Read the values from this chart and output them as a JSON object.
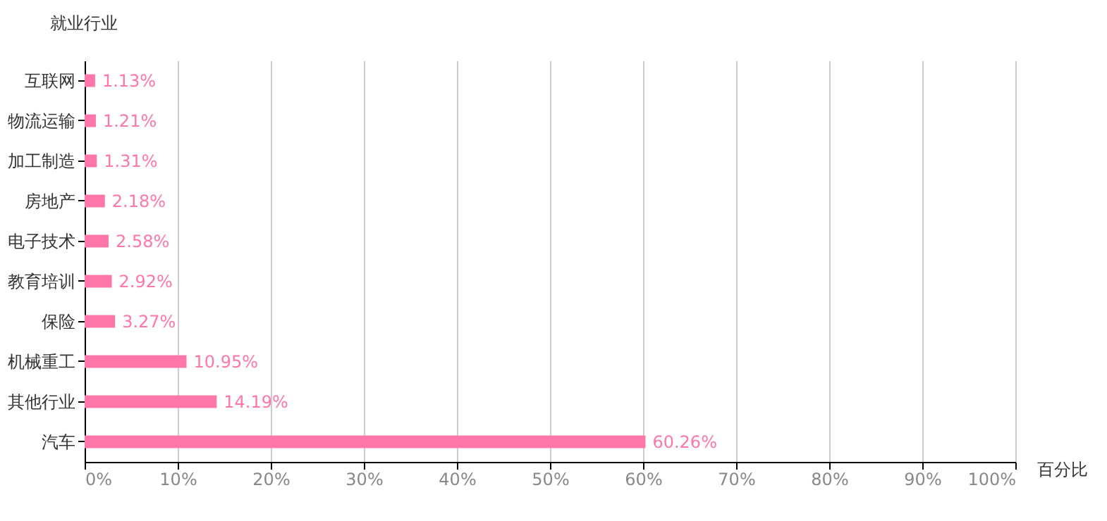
{
  "chart_data": {
    "type": "bar",
    "orientation": "horizontal",
    "xlabel": "百分比",
    "ylabel": "就业行业",
    "categories": [
      "互联网",
      "物流运输",
      "加工制造",
      "房地产",
      "电子技术",
      "教育培训",
      "保险",
      "机械重工",
      "其他行业",
      "汽车"
    ],
    "values": [
      1.13,
      1.21,
      1.31,
      2.18,
      2.58,
      2.92,
      3.27,
      10.95,
      14.19,
      60.26
    ],
    "value_labels": [
      "1.13%",
      "1.21%",
      "1.31%",
      "2.18%",
      "2.58%",
      "2.92%",
      "3.27%",
      "10.95%",
      "14.19%",
      "60.26%"
    ],
    "color": "#ff77a9",
    "xlim": [
      0,
      100
    ],
    "xticks": [
      {
        "value": 0,
        "label": "0%"
      },
      {
        "value": 10,
        "label": "10%"
      },
      {
        "value": 20,
        "label": "20%"
      },
      {
        "value": 30,
        "label": "30%"
      },
      {
        "value": 40,
        "label": "40%"
      },
      {
        "value": 50,
        "label": "50%"
      },
      {
        "value": 60,
        "label": "60%"
      },
      {
        "value": 70,
        "label": "70%"
      },
      {
        "value": 80,
        "label": "80%"
      },
      {
        "value": 90,
        "label": "90%"
      },
      {
        "value": 100,
        "label": "100%"
      }
    ],
    "grid": "x",
    "legend": false
  }
}
